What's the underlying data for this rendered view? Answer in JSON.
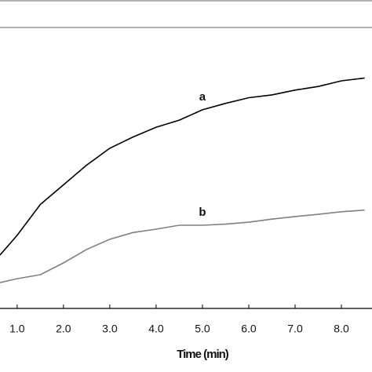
{
  "chart_data": {
    "type": "line",
    "x_label": "Time (min)",
    "x": [
      0.63,
      1.0,
      1.5,
      2.0,
      2.5,
      3.0,
      3.5,
      4.0,
      4.5,
      5.0,
      5.5,
      6.0,
      6.5,
      7.0,
      7.5,
      8.0,
      8.5
    ],
    "series": [
      {
        "name": "a",
        "color": "#000000",
        "values": [
          19,
          26,
          37,
          44,
          51,
          57,
          61,
          64.5,
          67,
          70.7,
          73,
          75,
          76,
          77.7,
          79,
          81,
          82
        ]
      },
      {
        "name": "b",
        "color": "#808080",
        "values": [
          9.2,
          10.6,
          12,
          16.2,
          21,
          24.6,
          27,
          28.2,
          29.6,
          29.6,
          30,
          30.7,
          31.8,
          32.7,
          33.5,
          34.4,
          35
        ]
      }
    ],
    "xlim": [
      0.63,
      8.66
    ],
    "xticks": [
      {
        "value": 1,
        "label": "1.0"
      },
      {
        "value": 2,
        "label": "2.0"
      },
      {
        "value": 3,
        "label": "3.0"
      },
      {
        "value": 4,
        "label": "4.0"
      },
      {
        "value": 5,
        "label": "5.0"
      },
      {
        "value": 6,
        "label": "6.0"
      },
      {
        "value": 7,
        "label": "7.0"
      },
      {
        "value": 8,
        "label": "8.0"
      }
    ],
    "ylim": [
      0,
      100
    ]
  }
}
